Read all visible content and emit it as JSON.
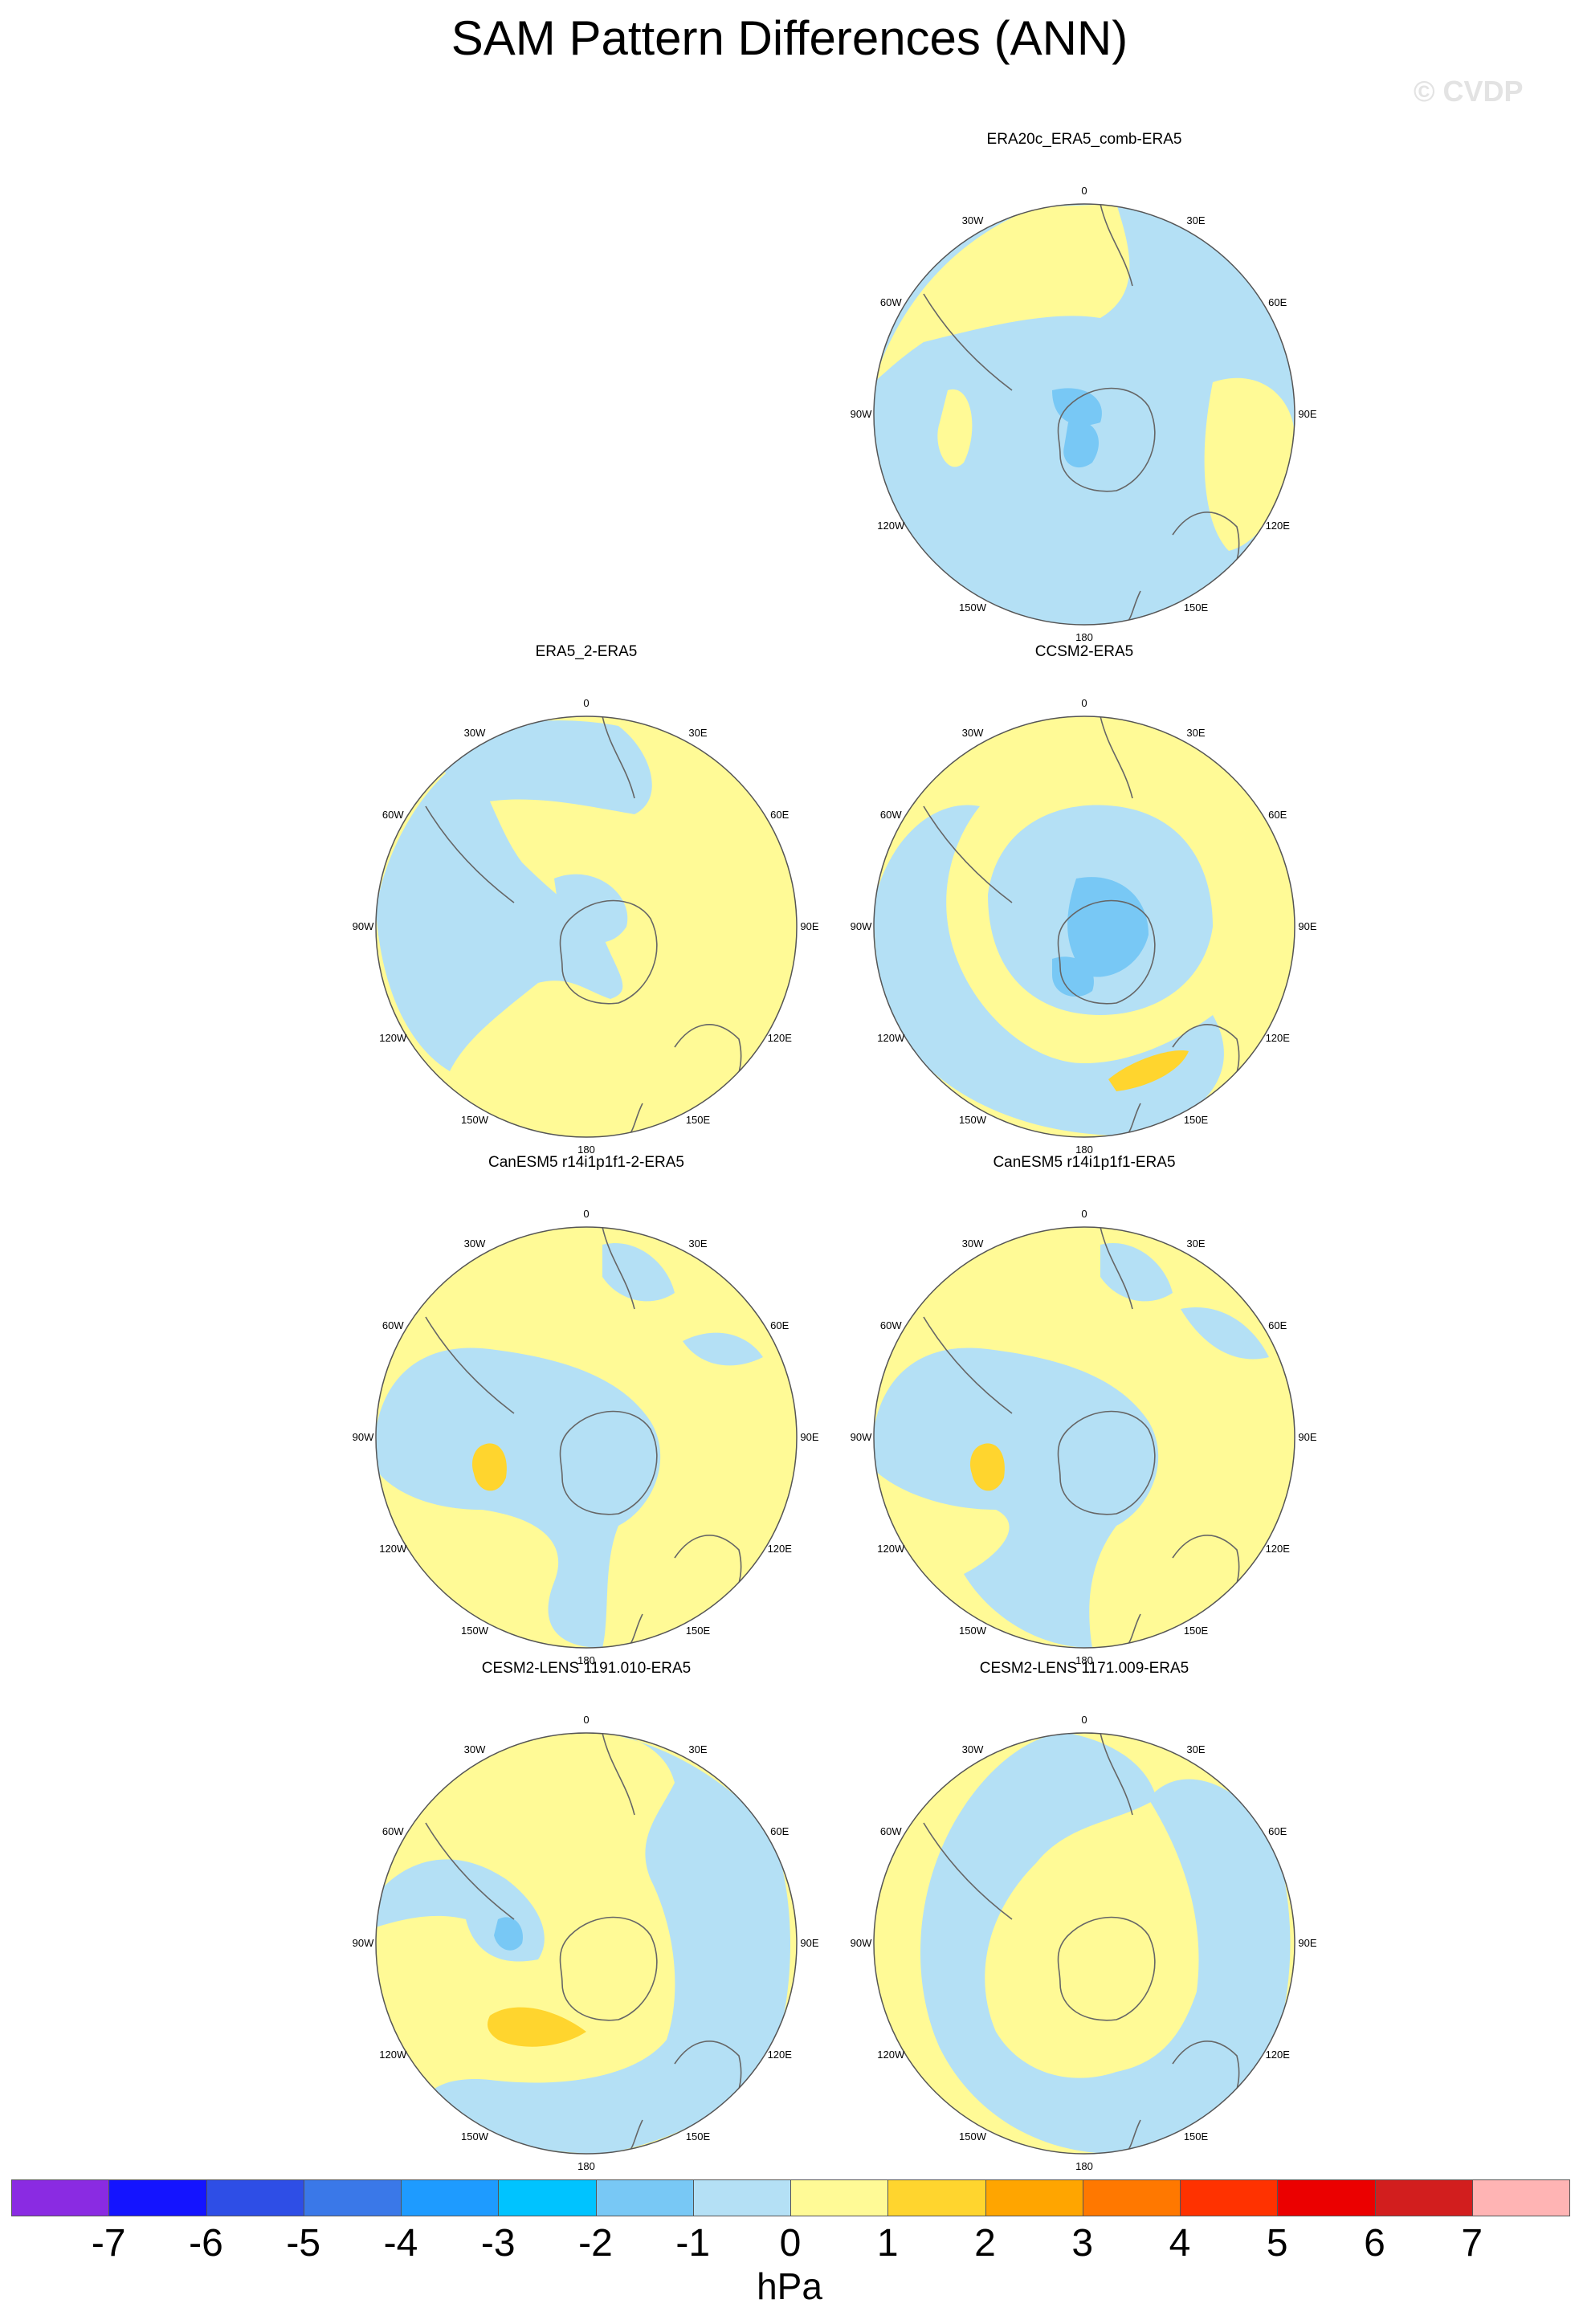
{
  "title": "SAM Pattern Differences (ANN)",
  "watermark": "© CVDP",
  "units": "hPa",
  "longitude_labels": {
    "l0": "0",
    "l30e": "30E",
    "l60e": "60E",
    "l90e": "90E",
    "l120e": "120E",
    "l150e": "150E",
    "l180": "180",
    "l150w": "150W",
    "l120w": "120W",
    "l90w": "90W",
    "l60w": "60W",
    "l30w": "30W"
  },
  "panels": [
    {
      "title": "ERA20c_ERA5_comb-ERA5",
      "background_value": -1
    },
    {
      "title": "ERA5_2-ERA5",
      "background_value": 1
    },
    {
      "title": "CCSM2-ERA5",
      "background_value": 1
    },
    {
      "title": "CanESM5 r14i1p1f1-2-ERA5",
      "background_value": 1
    },
    {
      "title": "CanESM5 r14i1p1f1-ERA5",
      "background_value": 1
    },
    {
      "title": "CESM2-LENS 1191.010-ERA5",
      "background_value": 1
    },
    {
      "title": "CESM2-LENS 1171.009-ERA5",
      "background_value": 1
    }
  ],
  "colorbar": {
    "tick_labels": [
      "-7",
      "-6",
      "-5",
      "-4",
      "-3",
      "-2",
      "-1",
      "0",
      "1",
      "2",
      "3",
      "4",
      "5",
      "6",
      "7"
    ],
    "colors": [
      "#8a2be2",
      "#1414ff",
      "#2e4ee6",
      "#3a78e8",
      "#1e9bff",
      "#00c3ff",
      "#78c8f5",
      "#b4e0f5",
      "#fffa96",
      "#ffd52e",
      "#ffa500",
      "#ff7800",
      "#ff3200",
      "#eb0000",
      "#d21e1e",
      "#ffb4b4"
    ]
  },
  "chart_data": {
    "type": "heatmap",
    "projection": "south-polar-stereographic",
    "variable": "SAM pattern difference",
    "units": "hPa",
    "contour_levels": [
      -7,
      -6,
      -5,
      -4,
      -3,
      -2,
      -1,
      0,
      1,
      2,
      3,
      4,
      5,
      6,
      7
    ],
    "panels": [
      {
        "name": "ERA20c_ERA5_comb-ERA5",
        "range": [
          -3,
          1
        ]
      },
      {
        "name": "ERA5_2-ERA5",
        "range": [
          -1,
          1
        ]
      },
      {
        "name": "CCSM2-ERA5",
        "range": [
          -3,
          2
        ]
      },
      {
        "name": "CanESM5 r14i1p1f1-2-ERA5",
        "range": [
          -1,
          2
        ]
      },
      {
        "name": "CanESM5 r14i1p1f1-ERA5",
        "range": [
          -1,
          2
        ]
      },
      {
        "name": "CESM2-LENS 1191.010-ERA5",
        "range": [
          -2,
          2
        ]
      },
      {
        "name": "CESM2-LENS 1171.009-ERA5",
        "range": [
          -1,
          1
        ]
      }
    ]
  }
}
